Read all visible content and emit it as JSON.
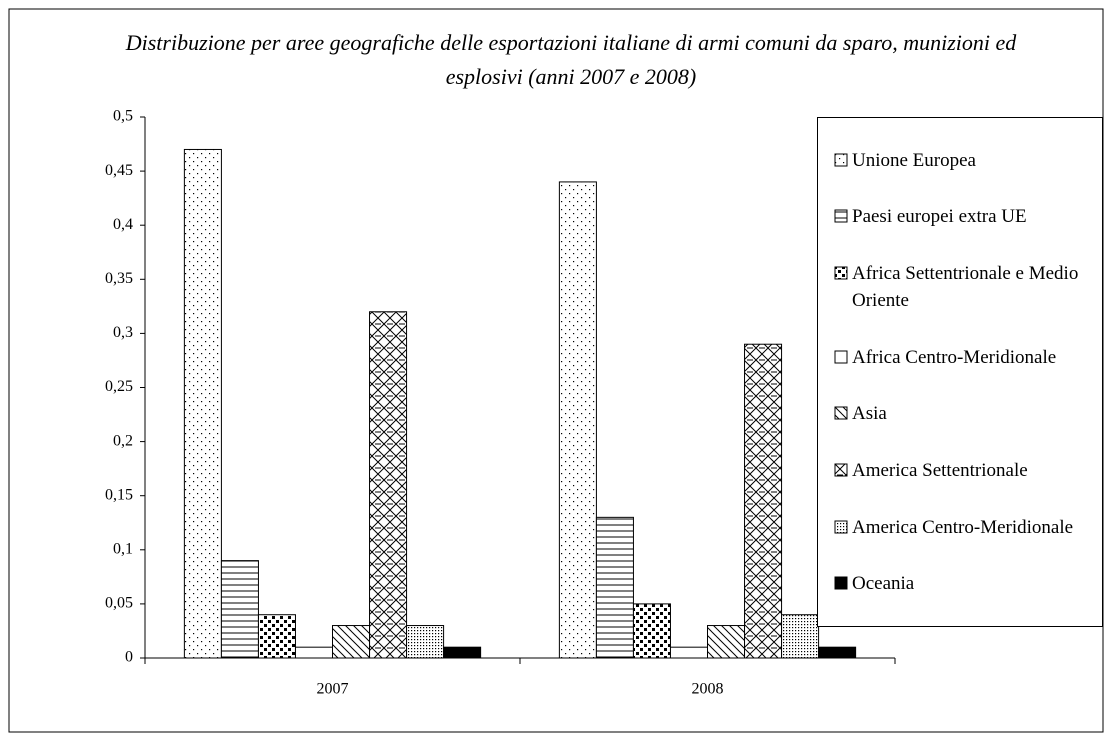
{
  "chart_data": {
    "type": "bar",
    "title": "Distribuzione per aree geografiche delle esportazioni italiane di armi comuni da sparo, munizioni ed esplosivi (anni 2007 e 2008)",
    "categories": [
      "2007",
      "2008"
    ],
    "series": [
      {
        "name": "Unione Europea",
        "color": "#000000",
        "values": [
          0.47,
          0.44
        ]
      },
      {
        "name": "Paesi europei extra UE",
        "color": "#000000",
        "values": [
          0.09,
          0.13
        ]
      },
      {
        "name": "Africa Settentrionale e Medio Oriente",
        "color": "#000000",
        "values": [
          0.04,
          0.05
        ]
      },
      {
        "name": "Africa Centro-Meridionale",
        "color": "#000000",
        "values": [
          0.01,
          0.01
        ]
      },
      {
        "name": "Asia",
        "color": "#000000",
        "values": [
          0.03,
          0.03
        ]
      },
      {
        "name": "America Settentrionale",
        "color": "#000000",
        "values": [
          0.32,
          0.29
        ]
      },
      {
        "name": "America Centro-Meridionale",
        "color": "#000000",
        "values": [
          0.03,
          0.04
        ]
      },
      {
        "name": "Oceania",
        "color": "#000000",
        "values": [
          0.01,
          0.01
        ]
      }
    ],
    "ylim": [
      0,
      0.5
    ],
    "yticks": [
      0,
      {
        "value": 0.05,
        "label": "0,05"
      },
      {
        "value": 0.1,
        "label": "0,1"
      },
      {
        "value": 0.15,
        "label": "0,15"
      },
      {
        "value": 0.2,
        "label": "0,2"
      },
      {
        "value": 0.25,
        "label": "0,25"
      },
      {
        "value": 0.3,
        "label": "0,3"
      },
      {
        "value": 0.35,
        "label": "0,35"
      },
      {
        "value": 0.4,
        "label": "0,4"
      },
      {
        "value": 0.45,
        "label": "0,45"
      },
      {
        "value": 0.5,
        "label": "0,5"
      }
    ],
    "grid": false,
    "legend": "right"
  }
}
